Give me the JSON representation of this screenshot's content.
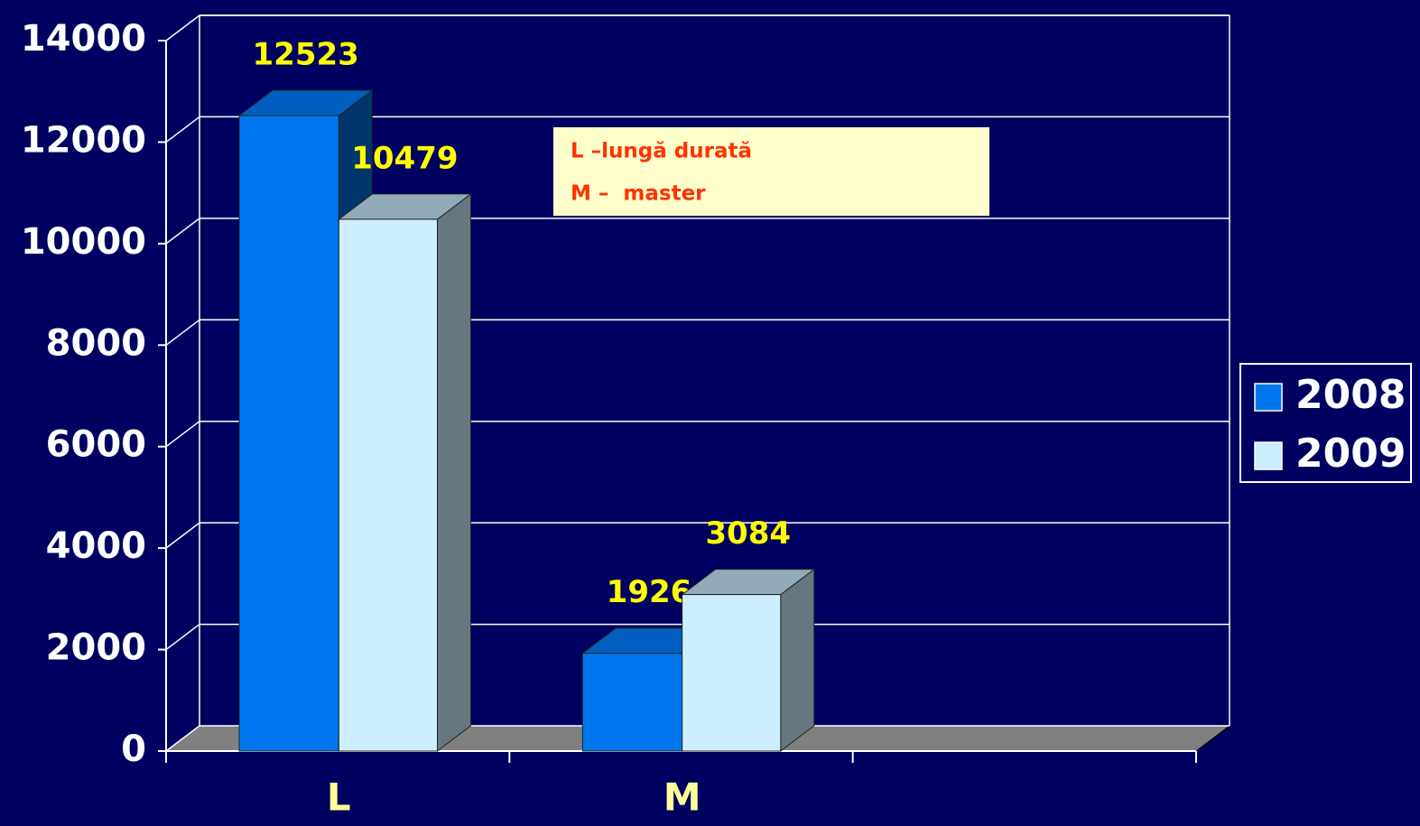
{
  "chart_data": {
    "type": "bar3d",
    "categories": [
      "L",
      "M",
      null
    ],
    "series": [
      {
        "name": "2008",
        "color": "#0077ee",
        "values": [
          12523,
          1926,
          null
        ]
      },
      {
        "name": "2009",
        "color": "#cceeff",
        "values": [
          10479,
          3084,
          null
        ]
      }
    ],
    "ylim": [
      0,
      14000
    ],
    "yticks": [
      0,
      2000,
      4000,
      6000,
      8000,
      10000,
      12000,
      14000
    ],
    "grid": true,
    "legend": "right",
    "annotations": [
      "L –lungă durată",
      "M –  master"
    ]
  }
}
